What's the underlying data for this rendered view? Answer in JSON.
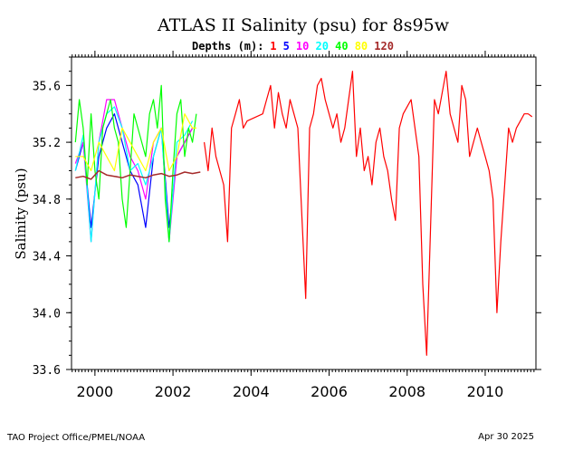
{
  "chart_data": {
    "type": "line",
    "title": "ATLAS II Salinity (psu) for 8s95w",
    "legend_prefix": "Depths (m):",
    "ylabel": "Salinity (psu)",
    "xlabel": "",
    "xlim": [
      1999.4,
      2011.3
    ],
    "ylim": [
      33.6,
      35.8
    ],
    "yticks": [
      "33.6",
      "34.0",
      "34.4",
      "34.8",
      "35.2",
      "35.6"
    ],
    "xticks": [
      "2000",
      "2002",
      "2004",
      "2006",
      "2008",
      "2010"
    ],
    "series": [
      {
        "name": "1",
        "color": "#ff0000",
        "x": [
          2002.8,
          2002.9,
          2003.0,
          2003.1,
          2003.2,
          2003.3,
          2003.4,
          2003.5,
          2003.6,
          2003.7,
          2003.8,
          2003.9,
          2004.3,
          2004.4,
          2004.5,
          2004.6,
          2004.7,
          2004.8,
          2004.9,
          2005.0,
          2005.1,
          2005.2,
          2005.3,
          2005.4,
          2005.5,
          2005.6,
          2005.7,
          2005.8,
          2005.9,
          2006.0,
          2006.1,
          2006.2,
          2006.3,
          2006.4,
          2006.5,
          2006.6,
          2006.7,
          2006.8,
          2006.9,
          2007.0,
          2007.1,
          2007.2,
          2007.3,
          2007.4,
          2007.5,
          2007.6,
          2007.7,
          2007.8,
          2007.9,
          2008.0,
          2008.1,
          2008.2,
          2008.3,
          2008.4,
          2008.5,
          2008.6,
          2008.7,
          2008.8,
          2008.9,
          2009.0,
          2009.1,
          2009.2,
          2009.3,
          2009.4,
          2009.5,
          2009.6,
          2009.7,
          2009.8,
          2009.9,
          2010.0,
          2010.1,
          2010.2,
          2010.3,
          2010.4,
          2010.5,
          2010.6,
          2010.7,
          2010.8,
          2010.9,
          2011.0,
          2011.1,
          2011.2
        ],
        "y": [
          35.2,
          35.0,
          35.3,
          35.1,
          35.0,
          34.9,
          34.5,
          35.3,
          35.4,
          35.5,
          35.3,
          35.35,
          35.4,
          35.5,
          35.6,
          35.3,
          35.55,
          35.4,
          35.3,
          35.5,
          35.4,
          35.3,
          34.7,
          34.1,
          35.3,
          35.4,
          35.6,
          35.65,
          35.5,
          35.4,
          35.3,
          35.4,
          35.2,
          35.3,
          35.5,
          35.7,
          35.1,
          35.3,
          35.0,
          35.1,
          34.9,
          35.2,
          35.3,
          35.1,
          35.0,
          34.8,
          34.65,
          35.3,
          35.4,
          35.45,
          35.5,
          35.3,
          35.1,
          34.2,
          33.7,
          34.6,
          35.5,
          35.4,
          35.55,
          35.7,
          35.4,
          35.3,
          35.2,
          35.6,
          35.5,
          35.1,
          35.2,
          35.3,
          35.2,
          35.1,
          35.0,
          34.8,
          34.0,
          34.5,
          34.9,
          35.3,
          35.2,
          35.3,
          35.35,
          35.4,
          35.4,
          35.38
        ]
      },
      {
        "name": "5",
        "color": "#0000ff",
        "x": [
          1999.5,
          1999.7,
          1999.9,
          2000.1,
          2000.3,
          2000.5,
          2000.7,
          2000.9,
          2001.1,
          2001.3,
          2001.5,
          2001.7,
          2001.9,
          2002.1,
          2002.3,
          2002.5
        ],
        "y": [
          35.0,
          35.2,
          34.6,
          35.1,
          35.3,
          35.4,
          35.2,
          35.0,
          34.9,
          34.6,
          35.1,
          35.3,
          34.6,
          35.1,
          35.2,
          35.3
        ]
      },
      {
        "name": "10",
        "color": "#ff00ff",
        "x": [
          1999.5,
          1999.7,
          1999.9,
          2000.1,
          2000.3,
          2000.5,
          2000.7,
          2000.9,
          2001.1,
          2001.3,
          2001.5,
          2001.7,
          2001.9,
          2002.1,
          2002.3,
          2002.5
        ],
        "y": [
          35.05,
          35.2,
          34.5,
          35.2,
          35.5,
          35.5,
          35.3,
          35.1,
          35.0,
          34.8,
          35.2,
          35.3,
          34.5,
          35.1,
          35.2,
          35.3
        ]
      },
      {
        "name": "20",
        "color": "#00ffff",
        "x": [
          1999.5,
          1999.7,
          1999.9,
          2000.1,
          2000.3,
          2000.5,
          2000.7,
          2000.9,
          2001.1,
          2001.3,
          2001.5,
          2001.7,
          2001.9,
          2002.1,
          2002.3,
          2002.5
        ],
        "y": [
          35.0,
          35.25,
          34.5,
          35.2,
          35.4,
          35.45,
          35.3,
          35.0,
          35.05,
          34.9,
          35.1,
          35.3,
          34.5,
          35.2,
          35.25,
          35.35
        ]
      },
      {
        "name": "40",
        "color": "#00ff00",
        "x": [
          1999.5,
          1999.6,
          1999.7,
          1999.8,
          1999.9,
          2000.0,
          2000.1,
          2000.2,
          2000.3,
          2000.4,
          2000.5,
          2000.6,
          2000.7,
          2000.8,
          2000.9,
          2001.0,
          2001.1,
          2001.2,
          2001.3,
          2001.4,
          2001.5,
          2001.6,
          2001.7,
          2001.8,
          2001.9,
          2002.0,
          2002.1,
          2002.2,
          2002.3,
          2002.4,
          2002.5,
          2002.6
        ],
        "y": [
          35.2,
          35.5,
          35.3,
          34.9,
          35.4,
          35.0,
          34.8,
          35.3,
          35.4,
          35.5,
          35.3,
          35.2,
          34.8,
          34.6,
          35.0,
          35.4,
          35.3,
          35.2,
          35.1,
          35.4,
          35.5,
          35.3,
          35.6,
          34.8,
          34.5,
          35.0,
          35.4,
          35.5,
          35.1,
          35.3,
          35.2,
          35.4
        ]
      },
      {
        "name": "80",
        "color": "#ffff00",
        "x": [
          1999.5,
          1999.7,
          1999.9,
          2000.1,
          2000.3,
          2000.5,
          2000.7,
          2000.9,
          2001.1,
          2001.3,
          2001.5,
          2001.7,
          2001.9,
          2002.1,
          2002.3,
          2002.5,
          2002.6
        ],
        "y": [
          35.1,
          35.1,
          35.0,
          35.2,
          35.1,
          35.0,
          35.3,
          35.2,
          35.1,
          35.0,
          35.2,
          35.3,
          35.0,
          35.1,
          35.4,
          35.3,
          35.3
        ]
      },
      {
        "name": "120",
        "color": "#a52a2a",
        "x": [
          1999.5,
          1999.7,
          1999.9,
          2000.1,
          2000.3,
          2000.5,
          2000.7,
          2000.9,
          2001.1,
          2001.3,
          2001.5,
          2001.7,
          2001.9,
          2002.1,
          2002.3,
          2002.5,
          2002.7
        ],
        "y": [
          34.95,
          34.96,
          34.94,
          35.0,
          34.97,
          34.96,
          34.95,
          34.97,
          34.96,
          34.95,
          34.97,
          34.98,
          34.96,
          34.97,
          34.99,
          34.98,
          34.99
        ]
      }
    ]
  },
  "footer": {
    "left": "TAO Project Office/PMEL/NOAA",
    "right": "Apr 30 2025"
  }
}
